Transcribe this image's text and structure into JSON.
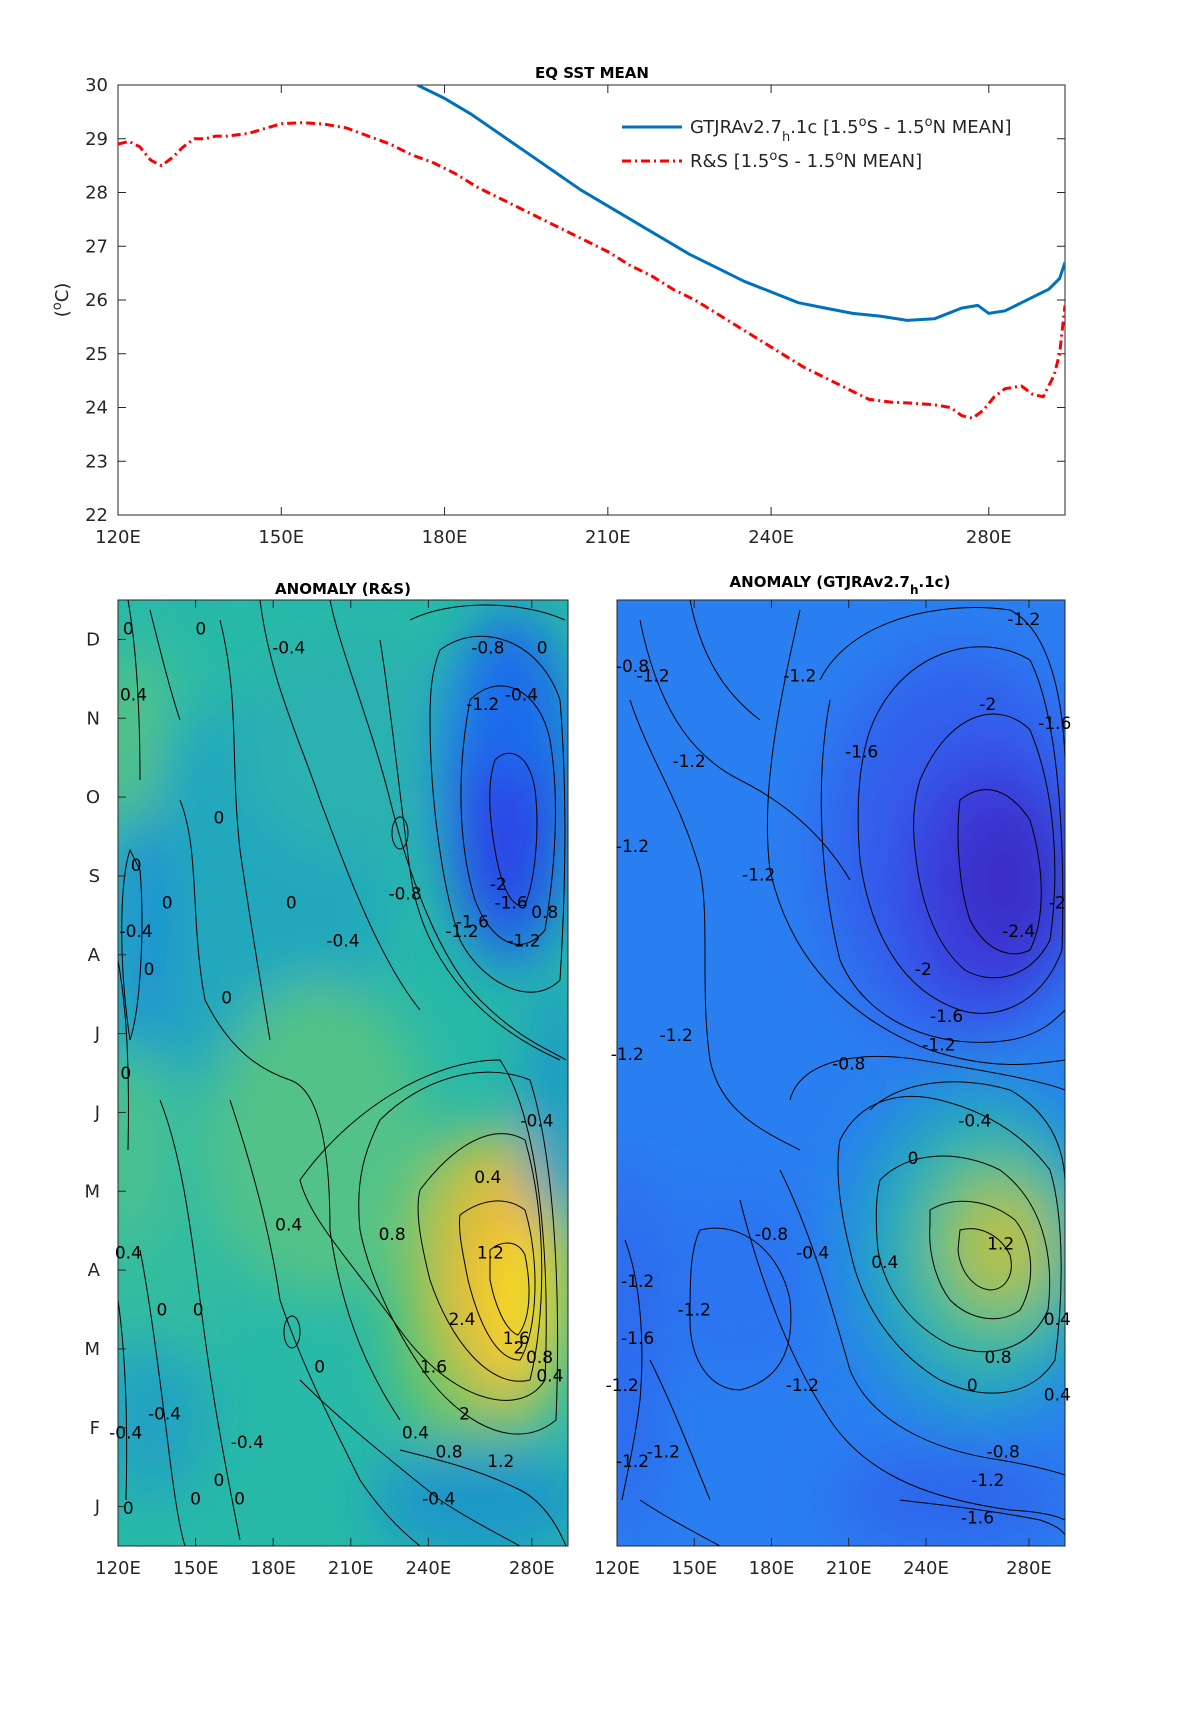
{
  "chart_data": [
    {
      "type": "line",
      "title": "EQ SST MEAN",
      "ylabel": "(°C)",
      "xlim": [
        120,
        294
      ],
      "ylim": [
        22,
        30
      ],
      "x_ticks": [
        120,
        150,
        180,
        210,
        240,
        280
      ],
      "x_tick_labels": [
        "120E",
        "150E",
        "180E",
        "210E",
        "240E",
        "280E"
      ],
      "y_ticks": [
        22,
        23,
        24,
        25,
        26,
        27,
        28,
        29,
        30
      ],
      "legend_position": "top-right",
      "series": [
        {
          "name_main": "GTJRAv2.7",
          "name_sub": "h",
          "name_rest": ".1c [1.5",
          "name_sup1": "o",
          "name_mid": "S - 1.5",
          "name_sup2": "o",
          "name_end": "N MEAN]",
          "color": "#0072BD",
          "style": "solid",
          "x": [
            175,
            180,
            185,
            190,
            195,
            200,
            205,
            210,
            215,
            220,
            225,
            230,
            235,
            240,
            245,
            250,
            255,
            260,
            265,
            270,
            275,
            278,
            280,
            283,
            286,
            289,
            291,
            293,
            294
          ],
          "y": [
            30.0,
            29.75,
            29.45,
            29.1,
            28.75,
            28.4,
            28.05,
            27.75,
            27.45,
            27.15,
            26.85,
            26.6,
            26.35,
            26.15,
            25.95,
            25.85,
            25.75,
            25.7,
            25.62,
            25.65,
            25.85,
            25.9,
            25.75,
            25.8,
            25.95,
            26.1,
            26.2,
            26.4,
            26.7
          ]
        },
        {
          "name_main": "R&S [1.5",
          "name_sup1": "o",
          "name_mid": "S - 1.5",
          "name_sup2": "o",
          "name_end": "N MEAN]",
          "color": "#FF0000",
          "style": "dashdot",
          "x": [
            120,
            122,
            124,
            126,
            128,
            130,
            132,
            134,
            136,
            138,
            140,
            144,
            148,
            150,
            154,
            158,
            162,
            166,
            170,
            174,
            178,
            182,
            186,
            190,
            194,
            198,
            202,
            206,
            210,
            214,
            218,
            222,
            226,
            230,
            234,
            238,
            242,
            246,
            250,
            254,
            258,
            262,
            266,
            270,
            273,
            275,
            277,
            279,
            281,
            283,
            286,
            288,
            290,
            292,
            293,
            294
          ],
          "y": [
            28.9,
            28.95,
            28.85,
            28.6,
            28.5,
            28.65,
            28.85,
            29.0,
            29.0,
            29.05,
            29.05,
            29.1,
            29.22,
            29.28,
            29.3,
            29.27,
            29.2,
            29.05,
            28.9,
            28.7,
            28.55,
            28.35,
            28.1,
            27.9,
            27.7,
            27.5,
            27.3,
            27.1,
            26.9,
            26.65,
            26.45,
            26.2,
            26.0,
            25.75,
            25.5,
            25.25,
            25.0,
            24.75,
            24.55,
            24.35,
            24.15,
            24.1,
            24.08,
            24.05,
            24.0,
            23.85,
            23.8,
            23.95,
            24.2,
            24.35,
            24.4,
            24.25,
            24.2,
            24.6,
            25.0,
            25.9
          ]
        }
      ]
    },
    {
      "type": "heatmap",
      "title": "ANOMALY (R&S)",
      "x_tick_labels": [
        "120E",
        "150E",
        "180E",
        "210E",
        "240E",
        "280E"
      ],
      "y_tick_labels": [
        "J",
        "F",
        "M",
        "A",
        "M",
        "J",
        "J",
        "A",
        "S",
        "O",
        "N",
        "D"
      ],
      "contour_labels": [
        {
          "t": "0",
          "x": 124,
          "y": 0.97
        },
        {
          "t": "0.4",
          "x": 126,
          "y": 0.9
        },
        {
          "t": "0",
          "x": 152,
          "y": 0.97
        },
        {
          "t": "-0.4",
          "x": 186,
          "y": 0.95
        },
        {
          "t": "-0.8",
          "x": 263,
          "y": 0.95
        },
        {
          "t": "0",
          "x": 284,
          "y": 0.95
        },
        {
          "t": "-0.4",
          "x": 276,
          "y": 0.9
        },
        {
          "t": "-1.2",
          "x": 261,
          "y": 0.89
        },
        {
          "t": "0",
          "x": 159,
          "y": 0.77
        },
        {
          "t": "0",
          "x": 127,
          "y": 0.72
        },
        {
          "t": "0",
          "x": 139,
          "y": 0.68
        },
        {
          "t": "0",
          "x": 187,
          "y": 0.68
        },
        {
          "t": "-0.8",
          "x": 231,
          "y": 0.69
        },
        {
          "t": "-0.4",
          "x": 207,
          "y": 0.64
        },
        {
          "t": "-2",
          "x": 267,
          "y": 0.7
        },
        {
          "t": "-1.6",
          "x": 272,
          "y": 0.68
        },
        {
          "t": "-1.6",
          "x": 257,
          "y": 0.66
        },
        {
          "t": "-1.2",
          "x": 253,
          "y": 0.65
        },
        {
          "t": "-1.2",
          "x": 277,
          "y": 0.64
        },
        {
          "t": "0.8",
          "x": 285,
          "y": 0.67
        },
        {
          "t": "-0.4",
          "x": 127,
          "y": 0.65
        },
        {
          "t": "0",
          "x": 132,
          "y": 0.61
        },
        {
          "t": "0",
          "x": 162,
          "y": 0.58
        },
        {
          "t": "0",
          "x": 123,
          "y": 0.5
        },
        {
          "t": "0.4",
          "x": 186,
          "y": 0.34
        },
        {
          "t": "0.8",
          "x": 226,
          "y": 0.33
        },
        {
          "t": "0.4",
          "x": 263,
          "y": 0.39
        },
        {
          "t": "-0.4",
          "x": 282,
          "y": 0.45
        },
        {
          "t": "1.2",
          "x": 264,
          "y": 0.31
        },
        {
          "t": "0.4",
          "x": 124,
          "y": 0.31
        },
        {
          "t": "0",
          "x": 137,
          "y": 0.25
        },
        {
          "t": "0",
          "x": 151,
          "y": 0.25
        },
        {
          "t": "2.4",
          "x": 253,
          "y": 0.24
        },
        {
          "t": "0",
          "x": 198,
          "y": 0.19
        },
        {
          "t": "1.6",
          "x": 242,
          "y": 0.19
        },
        {
          "t": "1.6",
          "x": 274,
          "y": 0.22
        },
        {
          "t": "2",
          "x": 275,
          "y": 0.21
        },
        {
          "t": "0.8",
          "x": 283,
          "y": 0.2
        },
        {
          "t": "0.4",
          "x": 287,
          "y": 0.18
        },
        {
          "t": "2",
          "x": 254,
          "y": 0.14
        },
        {
          "t": "0.4",
          "x": 235,
          "y": 0.12
        },
        {
          "t": "-0.4",
          "x": 123,
          "y": 0.12
        },
        {
          "t": "-0.4",
          "x": 138,
          "y": 0.14
        },
        {
          "t": "0.8",
          "x": 248,
          "y": 0.1
        },
        {
          "t": "-0.4",
          "x": 170,
          "y": 0.11
        },
        {
          "t": "1.2",
          "x": 268,
          "y": 0.09
        },
        {
          "t": "0",
          "x": 159,
          "y": 0.07
        },
        {
          "t": "0",
          "x": 167,
          "y": 0.05
        },
        {
          "t": "0",
          "x": 150,
          "y": 0.05
        },
        {
          "t": "-0.4",
          "x": 244,
          "y": 0.05
        },
        {
          "t": "0",
          "x": 124,
          "y": 0.04
        }
      ]
    },
    {
      "type": "heatmap",
      "title_main": "ANOMALY (GTJRAv2.7",
      "title_sub": "h",
      "title_end": ".1c)",
      "x_tick_labels": [
        "120E",
        "150E",
        "180E",
        "210E",
        "240E",
        "280E"
      ],
      "contour_labels": [
        {
          "t": "-1.2",
          "x": 278,
          "y": 0.98
        },
        {
          "t": "-0.8",
          "x": 126,
          "y": 0.93
        },
        {
          "t": "-1.2",
          "x": 134,
          "y": 0.92
        },
        {
          "t": "-1.2",
          "x": 191,
          "y": 0.92
        },
        {
          "t": "-2",
          "x": 264,
          "y": 0.89
        },
        {
          "t": "-1.6",
          "x": 290,
          "y": 0.87
        },
        {
          "t": "-1.6",
          "x": 215,
          "y": 0.84
        },
        {
          "t": "-1.2",
          "x": 148,
          "y": 0.83
        },
        {
          "t": "-1.2",
          "x": 126,
          "y": 0.74
        },
        {
          "t": "-1.2",
          "x": 175,
          "y": 0.71
        },
        {
          "t": "-2",
          "x": 291,
          "y": 0.68
        },
        {
          "t": "-2.4",
          "x": 276,
          "y": 0.65
        },
        {
          "t": "-2",
          "x": 239,
          "y": 0.61
        },
        {
          "t": "-1.6",
          "x": 248,
          "y": 0.56
        },
        {
          "t": "-1.2",
          "x": 245,
          "y": 0.53
        },
        {
          "t": "-1.2",
          "x": 143,
          "y": 0.54
        },
        {
          "t": "-0.8",
          "x": 210,
          "y": 0.51
        },
        {
          "t": "-1.2",
          "x": 124,
          "y": 0.52
        },
        {
          "t": "-0.4",
          "x": 259,
          "y": 0.45
        },
        {
          "t": "0",
          "x": 235,
          "y": 0.41
        },
        {
          "t": "-0.8",
          "x": 180,
          "y": 0.33
        },
        {
          "t": "-0.4",
          "x": 196,
          "y": 0.31
        },
        {
          "t": "0.4",
          "x": 224,
          "y": 0.3
        },
        {
          "t": "1.2",
          "x": 269,
          "y": 0.32
        },
        {
          "t": "-1.2",
          "x": 128,
          "y": 0.28
        },
        {
          "t": "-1.2",
          "x": 150,
          "y": 0.25
        },
        {
          "t": "-1.6",
          "x": 128,
          "y": 0.22
        },
        {
          "t": "0.4",
          "x": 291,
          "y": 0.24
        },
        {
          "t": "0.8",
          "x": 268,
          "y": 0.2
        },
        {
          "t": "-1.2",
          "x": 122,
          "y": 0.17
        },
        {
          "t": "-1.2",
          "x": 192,
          "y": 0.17
        },
        {
          "t": "0",
          "x": 258,
          "y": 0.17
        },
        {
          "t": "0.4",
          "x": 291,
          "y": 0.16
        },
        {
          "t": "-1.2",
          "x": 138,
          "y": 0.1
        },
        {
          "t": "-0.8",
          "x": 270,
          "y": 0.1
        },
        {
          "t": "-1.2",
          "x": 126,
          "y": 0.09
        },
        {
          "t": "-1.2",
          "x": 264,
          "y": 0.07
        },
        {
          "t": "-1.6",
          "x": 260,
          "y": 0.03
        }
      ]
    }
  ]
}
